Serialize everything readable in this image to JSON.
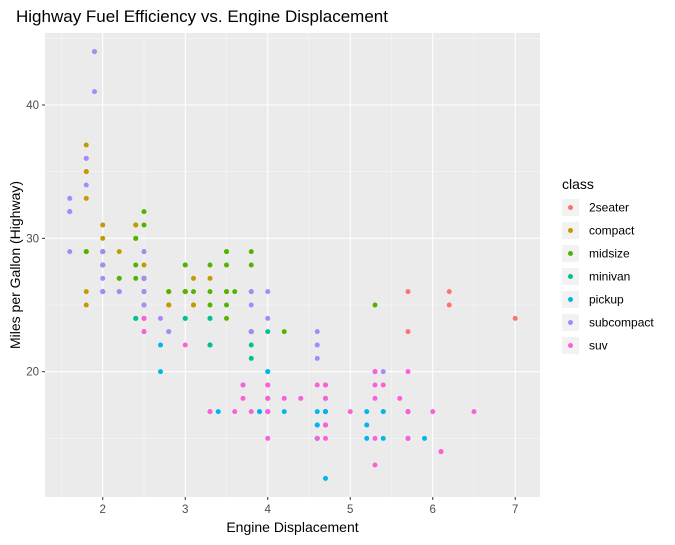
{
  "chart_data": {
    "type": "scatter",
    "title": "Highway Fuel Efficiency vs. Engine Displacement",
    "xlabel": "Engine Displacement",
    "ylabel": "Miles per Gallon (Highway)",
    "xlim": [
      1.3,
      7.3
    ],
    "ylim": [
      10.6,
      45.4
    ],
    "xticks": [
      2,
      3,
      4,
      5,
      6,
      7
    ],
    "yticks": [
      20,
      30,
      40
    ],
    "grid": true,
    "legend": {
      "title": "class",
      "placement": "right"
    },
    "series": [
      {
        "name": "2seater",
        "color": "#F8766D",
        "points": [
          [
            5.7,
            26
          ],
          [
            5.7,
            23
          ],
          [
            6.2,
            26
          ],
          [
            6.2,
            25
          ],
          [
            7.0,
            24
          ]
        ]
      },
      {
        "name": "compact",
        "color": "#C49A00",
        "points": [
          [
            1.8,
            29
          ],
          [
            1.8,
            29
          ],
          [
            2.0,
            31
          ],
          [
            2.0,
            30
          ],
          [
            2.8,
            26
          ],
          [
            2.8,
            26
          ],
          [
            3.1,
            27
          ],
          [
            1.8,
            26
          ],
          [
            1.8,
            25
          ],
          [
            2.0,
            28
          ],
          [
            2.0,
            28
          ],
          [
            2.8,
            25
          ],
          [
            2.8,
            25
          ],
          [
            3.1,
            25
          ],
          [
            3.1,
            25
          ],
          [
            2.2,
            27
          ],
          [
            2.2,
            29
          ],
          [
            2.4,
            31
          ],
          [
            2.4,
            31
          ],
          [
            3.0,
            26
          ],
          [
            3.0,
            26
          ],
          [
            3.3,
            27
          ],
          [
            1.8,
            33
          ],
          [
            1.8,
            35
          ],
          [
            1.8,
            37
          ],
          [
            1.8,
            35
          ],
          [
            1.9,
            44
          ],
          [
            2.0,
            29
          ],
          [
            2.0,
            26
          ],
          [
            2.0,
            29
          ],
          [
            2.0,
            29
          ],
          [
            2.5,
            27
          ],
          [
            2.5,
            24
          ],
          [
            2.8,
            23
          ],
          [
            2.5,
            26
          ],
          [
            2.5,
            26
          ],
          [
            2.8,
            25
          ],
          [
            2.5,
            27
          ],
          [
            3.0,
            26
          ],
          [
            2.5,
            29
          ],
          [
            2.5,
            28
          ]
        ]
      },
      {
        "name": "midsize",
        "color": "#53B400",
        "points": [
          [
            2.4,
            27
          ],
          [
            2.4,
            30
          ],
          [
            3.1,
            26
          ],
          [
            3.5,
            29
          ],
          [
            3.6,
            26
          ],
          [
            2.4,
            24
          ],
          [
            3.0,
            24
          ],
          [
            3.3,
            28
          ],
          [
            3.3,
            26
          ],
          [
            3.3,
            24
          ],
          [
            3.8,
            28
          ],
          [
            3.8,
            26
          ],
          [
            3.8,
            29
          ],
          [
            4.2,
            23
          ],
          [
            2.2,
            26
          ],
          [
            2.2,
            27
          ],
          [
            2.4,
            28
          ],
          [
            2.4,
            30
          ],
          [
            3.0,
            28
          ],
          [
            3.0,
            28
          ],
          [
            3.5,
            26
          ],
          [
            2.5,
            27
          ],
          [
            2.5,
            25
          ],
          [
            3.5,
            29
          ],
          [
            3.5,
            26
          ],
          [
            3.5,
            28
          ],
          [
            3.0,
            26
          ],
          [
            3.5,
            25
          ],
          [
            1.8,
            29
          ],
          [
            2.0,
            26
          ],
          [
            2.0,
            29
          ],
          [
            2.0,
            28
          ],
          [
            2.5,
            31
          ],
          [
            2.8,
            26
          ],
          [
            3.0,
            26
          ],
          [
            3.3,
            25
          ],
          [
            3.5,
            24
          ],
          [
            5.3,
            25
          ],
          [
            2.5,
            32
          ],
          [
            2.5,
            27
          ],
          [
            3.8,
            23
          ]
        ]
      },
      {
        "name": "minivan",
        "color": "#00C094",
        "points": [
          [
            2.4,
            24
          ],
          [
            3.0,
            24
          ],
          [
            3.3,
            22
          ],
          [
            3.3,
            22
          ],
          [
            3.3,
            24
          ],
          [
            3.8,
            22
          ],
          [
            3.8,
            21
          ],
          [
            3.8,
            23
          ],
          [
            3.8,
            23
          ],
          [
            4.0,
            23
          ],
          [
            3.3,
            17
          ]
        ]
      },
      {
        "name": "pickup",
        "color": "#00B6EB",
        "points": [
          [
            3.7,
            19
          ],
          [
            3.9,
            17
          ],
          [
            3.9,
            17
          ],
          [
            4.7,
            17
          ],
          [
            4.7,
            17
          ],
          [
            4.7,
            17
          ],
          [
            5.2,
            16
          ],
          [
            5.2,
            15
          ],
          [
            5.7,
            17
          ],
          [
            5.9,
            15
          ],
          [
            4.7,
            17
          ],
          [
            4.7,
            16
          ],
          [
            4.7,
            12
          ],
          [
            5.2,
            17
          ],
          [
            5.7,
            15
          ],
          [
            4.6,
            17
          ],
          [
            5.4,
            17
          ],
          [
            5.4,
            15
          ],
          [
            5.4,
            17
          ],
          [
            4.0,
            20
          ],
          [
            4.0,
            20
          ],
          [
            4.2,
            17
          ],
          [
            4.6,
            15
          ],
          [
            4.6,
            15
          ],
          [
            4.6,
            16
          ],
          [
            4.6,
            16
          ],
          [
            4.7,
            17
          ],
          [
            4.7,
            18
          ],
          [
            4.0,
            17
          ],
          [
            4.0,
            17
          ],
          [
            2.7,
            20
          ],
          [
            2.7,
            22
          ],
          [
            3.4,
            17
          ],
          [
            4.0,
            18
          ]
        ]
      },
      {
        "name": "subcompact",
        "color": "#A58AFF",
        "points": [
          [
            1.6,
            33
          ],
          [
            1.6,
            32
          ],
          [
            1.6,
            29
          ],
          [
            1.6,
            32
          ],
          [
            1.6,
            32
          ],
          [
            1.8,
            34
          ],
          [
            1.8,
            36
          ],
          [
            1.8,
            36
          ],
          [
            2.0,
            29
          ],
          [
            1.9,
            44
          ],
          [
            1.9,
            41
          ],
          [
            2.0,
            26
          ],
          [
            2.0,
            28
          ],
          [
            2.0,
            29
          ],
          [
            2.0,
            27
          ],
          [
            2.5,
            26
          ],
          [
            2.5,
            25
          ],
          [
            3.8,
            26
          ],
          [
            3.8,
            25
          ],
          [
            4.0,
            26
          ],
          [
            4.0,
            24
          ],
          [
            4.6,
            21
          ],
          [
            4.6,
            22
          ],
          [
            4.6,
            23
          ],
          [
            5.4,
            20
          ],
          [
            2.2,
            26
          ],
          [
            2.5,
            29
          ],
          [
            2.5,
            27
          ],
          [
            2.5,
            24
          ],
          [
            2.5,
            23
          ],
          [
            2.0,
            26
          ],
          [
            2.0,
            29
          ],
          [
            2.7,
            24
          ],
          [
            2.8,
            23
          ],
          [
            3.8,
            23
          ]
        ]
      },
      {
        "name": "suv",
        "color": "#FB61D7",
        "points": [
          [
            5.7,
            20
          ],
          [
            5.3,
            20
          ],
          [
            5.3,
            15
          ],
          [
            5.3,
            20
          ],
          [
            5.7,
            17
          ],
          [
            6.0,
            17
          ],
          [
            5.7,
            15
          ],
          [
            5.7,
            17
          ],
          [
            6.5,
            17
          ],
          [
            5.3,
            20
          ],
          [
            5.3,
            18
          ],
          [
            5.6,
            18
          ],
          [
            6.1,
            14
          ],
          [
            4.7,
            19
          ],
          [
            4.7,
            19
          ],
          [
            4.7,
            18
          ],
          [
            4.7,
            16
          ],
          [
            4.7,
            16
          ],
          [
            5.7,
            17
          ],
          [
            6.1,
            14
          ],
          [
            4.0,
            19
          ],
          [
            4.0,
            18
          ],
          [
            4.6,
            19
          ],
          [
            5.0,
            17
          ],
          [
            4.0,
            17
          ],
          [
            4.0,
            17
          ],
          [
            4.6,
            15
          ],
          [
            4.0,
            19
          ],
          [
            4.0,
            18
          ],
          [
            3.7,
            19
          ],
          [
            3.8,
            17
          ],
          [
            3.7,
            18
          ],
          [
            4.2,
            18
          ],
          [
            5.3,
            19
          ],
          [
            5.4,
            19
          ],
          [
            5.3,
            13
          ],
          [
            4.0,
            15
          ],
          [
            4.4,
            18
          ],
          [
            2.5,
            23
          ],
          [
            2.5,
            24
          ],
          [
            3.0,
            22
          ],
          [
            3.3,
            17
          ],
          [
            3.6,
            17
          ],
          [
            4.7,
            15
          ],
          [
            5.7,
            15
          ]
        ]
      }
    ]
  }
}
